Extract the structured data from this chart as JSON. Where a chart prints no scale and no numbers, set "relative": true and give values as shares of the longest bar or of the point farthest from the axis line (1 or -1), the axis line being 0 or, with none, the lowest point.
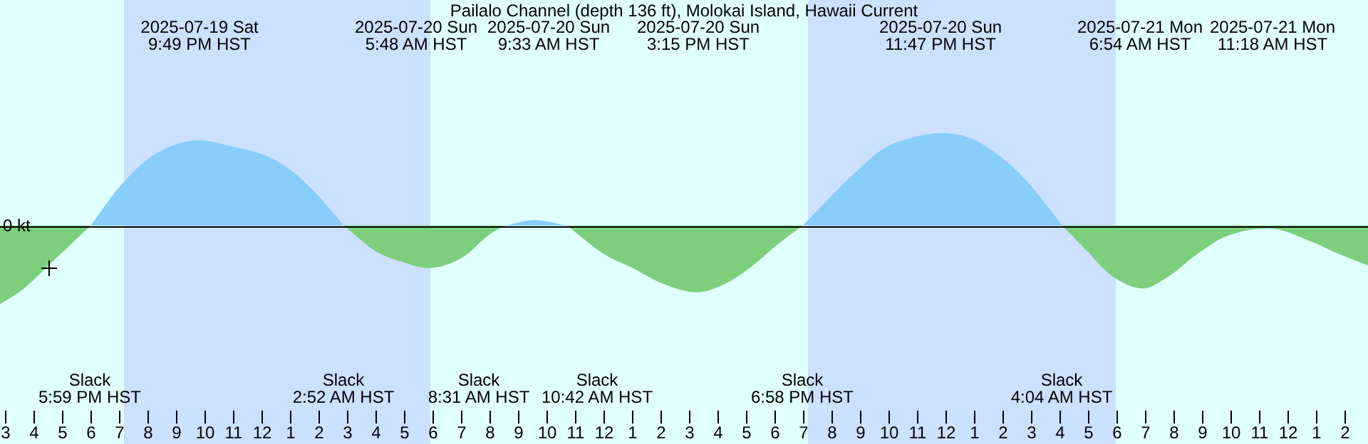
{
  "chart_data": {
    "type": "area",
    "title": "Pailalo Channel (depth 136 ft), Molokai Island, Hawaii Current",
    "relative": true,
    "xlim": [
      "2025-07-19T14:48",
      "2025-07-21T14:48"
    ],
    "xticks": [
      {
        "value": "2025-07-19T15:00",
        "label": "3"
      },
      {
        "value": "2025-07-19T16:00",
        "label": "4"
      },
      {
        "value": "2025-07-19T17:00",
        "label": "5"
      },
      {
        "value": "2025-07-19T18:00",
        "label": "6"
      },
      {
        "value": "2025-07-19T19:00",
        "label": "7"
      },
      {
        "value": "2025-07-19T20:00",
        "label": "8"
      },
      {
        "value": "2025-07-19T21:00",
        "label": "9"
      },
      {
        "value": "2025-07-19T22:00",
        "label": "10"
      },
      {
        "value": "2025-07-19T23:00",
        "label": "11"
      },
      {
        "value": "2025-07-20T00:00",
        "label": "12"
      },
      {
        "value": "2025-07-20T01:00",
        "label": "1"
      },
      {
        "value": "2025-07-20T02:00",
        "label": "2"
      },
      {
        "value": "2025-07-20T03:00",
        "label": "3"
      },
      {
        "value": "2025-07-20T04:00",
        "label": "4"
      },
      {
        "value": "2025-07-20T05:00",
        "label": "5"
      },
      {
        "value": "2025-07-20T06:00",
        "label": "6"
      },
      {
        "value": "2025-07-20T07:00",
        "label": "7"
      },
      {
        "value": "2025-07-20T08:00",
        "label": "8"
      },
      {
        "value": "2025-07-20T09:00",
        "label": "9"
      },
      {
        "value": "2025-07-20T10:00",
        "label": "10"
      },
      {
        "value": "2025-07-20T11:00",
        "label": "11"
      },
      {
        "value": "2025-07-20T12:00",
        "label": "12"
      },
      {
        "value": "2025-07-20T13:00",
        "label": "1"
      },
      {
        "value": "2025-07-20T14:00",
        "label": "2"
      },
      {
        "value": "2025-07-20T15:00",
        "label": "3"
      },
      {
        "value": "2025-07-20T16:00",
        "label": "4"
      },
      {
        "value": "2025-07-20T17:00",
        "label": "5"
      },
      {
        "value": "2025-07-20T18:00",
        "label": "6"
      },
      {
        "value": "2025-07-20T19:00",
        "label": "7"
      },
      {
        "value": "2025-07-20T20:00",
        "label": "8"
      },
      {
        "value": "2025-07-20T21:00",
        "label": "9"
      },
      {
        "value": "2025-07-20T22:00",
        "label": "10"
      },
      {
        "value": "2025-07-20T23:00",
        "label": "11"
      },
      {
        "value": "2025-07-21T00:00",
        "label": "12"
      },
      {
        "value": "2025-07-21T01:00",
        "label": "1"
      },
      {
        "value": "2025-07-21T02:00",
        "label": "2"
      },
      {
        "value": "2025-07-21T03:00",
        "label": "3"
      },
      {
        "value": "2025-07-21T04:00",
        "label": "4"
      },
      {
        "value": "2025-07-21T05:00",
        "label": "5"
      },
      {
        "value": "2025-07-21T06:00",
        "label": "6"
      },
      {
        "value": "2025-07-21T07:00",
        "label": "7"
      },
      {
        "value": "2025-07-21T08:00",
        "label": "8"
      },
      {
        "value": "2025-07-21T09:00",
        "label": "9"
      },
      {
        "value": "2025-07-21T10:00",
        "label": "10"
      },
      {
        "value": "2025-07-21T11:00",
        "label": "11"
      },
      {
        "value": "2025-07-21T12:00",
        "label": "12"
      },
      {
        "value": "2025-07-21T13:00",
        "label": "1"
      },
      {
        "value": "2025-07-21T14:00",
        "label": "2"
      }
    ],
    "tick_labels": "x",
    "grid": false,
    "legend": false,
    "series": [
      {
        "color": "#87cefa",
        "x": [
          "2025-07-19T17:59",
          "2025-07-19T19:00",
          "2025-07-19T20:00",
          "2025-07-19T21:00",
          "2025-07-19T21:49",
          "2025-07-19T23:00",
          "2025-07-20T00:00",
          "2025-07-20T01:00",
          "2025-07-20T02:00",
          "2025-07-20T02:52",
          null,
          "2025-07-20T08:31",
          "2025-07-20T09:33",
          "2025-07-20T10:42",
          null,
          "2025-07-20T18:58",
          "2025-07-20T20:48",
          "2025-07-20T21:48",
          "2025-07-20T22:48",
          "2025-07-20T23:47",
          "2025-07-21T00:48",
          "2025-07-21T01:48",
          "2025-07-21T02:48",
          "2025-07-21T03:48",
          "2025-07-21T04:04"
        ],
        "values": [
          0,
          0.42,
          0.72,
          0.88,
          0.92,
          0.85,
          0.77,
          0.6,
          0.31,
          0,
          null,
          0,
          0.06,
          0,
          null,
          0,
          0.57,
          0.83,
          0.95,
          1,
          0.95,
          0.77,
          0.49,
          0.11,
          0
        ]
      },
      {
        "color": "#7dcf7d",
        "x": [
          "2025-07-19T14:48",
          "2025-07-19T15:36",
          "2025-07-19T16:30",
          "2025-07-19T17:59",
          null,
          "2025-07-20T02:52",
          "2025-07-20T04:00",
          "2025-07-20T05:00",
          "2025-07-20T05:48",
          "2025-07-20T07:00",
          "2025-07-20T08:00",
          "2025-07-20T08:31",
          null,
          "2025-07-20T10:42",
          "2025-07-20T12:00",
          "2025-07-20T13:00",
          "2025-07-20T14:00",
          "2025-07-20T15:15",
          "2025-07-20T16:18",
          "2025-07-20T17:06",
          "2025-07-20T18:06",
          "2025-07-20T18:58",
          null,
          "2025-07-21T04:04",
          "2025-07-21T04:48",
          "2025-07-21T05:48",
          "2025-07-21T06:54",
          "2025-07-21T07:48",
          "2025-07-21T08:48",
          "2025-07-21T09:48",
          "2025-07-21T11:18",
          "2025-07-21T12:48",
          "2025-07-21T13:48",
          "2025-07-21T14:48"
        ],
        "values": [
          -0.85,
          -0.69,
          -0.43,
          0,
          null,
          0,
          -0.28,
          -0.4,
          -0.46,
          -0.35,
          -0.09,
          0,
          null,
          0,
          -0.31,
          -0.46,
          -0.62,
          -0.72,
          -0.62,
          -0.46,
          -0.2,
          0,
          null,
          0,
          -0.23,
          -0.54,
          -0.68,
          -0.55,
          -0.31,
          -0.12,
          -0.03,
          -0.17,
          -0.31,
          -0.43
        ]
      }
    ],
    "bands": [
      {
        "axis": "x",
        "from": "2025-07-19T19:09",
        "to": "2025-07-20T05:54",
        "color": "#cce0ff"
      },
      {
        "axis": "x",
        "from": "2025-07-20T19:09",
        "to": "2025-07-21T05:57",
        "color": "#cce0ff"
      }
    ],
    "ref_lines": [
      {
        "axis": "y",
        "value": 0,
        "label": "0 kt",
        "color": "#000000"
      }
    ],
    "annotations": [
      "2025-07-19 Sat\n9:49 PM HST",
      "2025-07-20 Sun\n5:48 AM HST",
      "2025-07-20 Sun\n9:33 AM HST",
      "2025-07-20 Sun\n3:15 PM HST",
      "2025-07-20 Sun\n11:47 PM HST",
      "2025-07-21 Mon\n6:54 AM HST",
      "2025-07-21 Mon\n11:18 AM HST",
      "Slack\n5:59 PM HST",
      "Slack\n2:52 AM HST",
      "Slack\n8:31 AM HST",
      "Slack\n10:42 AM HST",
      "Slack\n6:58 PM HST",
      "Slack\n4:04 AM HST"
    ]
  }
}
